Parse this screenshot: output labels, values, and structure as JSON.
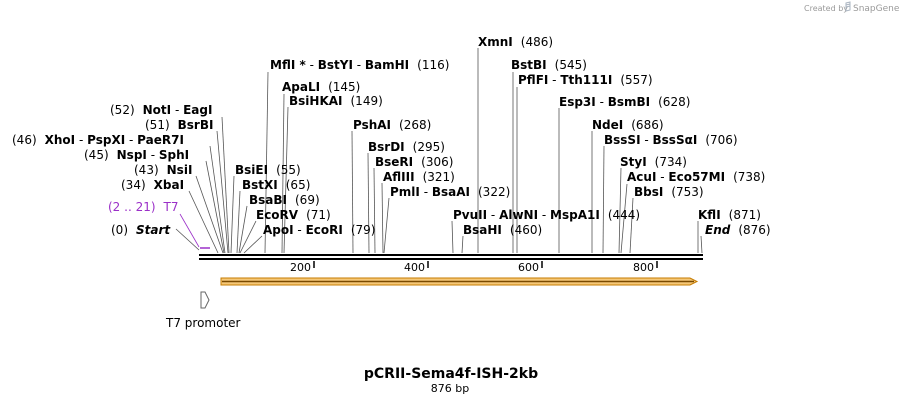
{
  "credit": "Created by",
  "brand": "SnapGene",
  "plasmid": {
    "name": "pCRII-Sema4f-ISH-2kb",
    "size_label": "876 bp",
    "length": 876
  },
  "ticks": [
    "200",
    "400",
    "600",
    "800"
  ],
  "labels": [
    {
      "id": "xmni",
      "parts": [
        {
          "t": "XmnI",
          "b": true
        }
      ],
      "pos": "(486)",
      "site": 486
    },
    {
      "id": "mfli",
      "parts": [
        {
          "t": "MflI *",
          "b": true
        },
        {
          "t": " - "
        },
        {
          "t": "BstYI",
          "b": true
        },
        {
          "t": " - "
        },
        {
          "t": "BamHI",
          "b": true
        }
      ],
      "pos": "(116)",
      "site": 116
    },
    {
      "id": "bstbi",
      "parts": [
        {
          "t": "BstBI",
          "b": true
        }
      ],
      "pos": "(545)",
      "site": 545
    },
    {
      "id": "pflfi",
      "parts": [
        {
          "t": "PflFI",
          "b": true
        },
        {
          "t": " - "
        },
        {
          "t": "Tth111I",
          "b": true
        }
      ],
      "pos": "(557)",
      "site": 557
    },
    {
      "id": "apali",
      "parts": [
        {
          "t": "ApaLI",
          "b": true
        }
      ],
      "pos": "(145)",
      "site": 145
    },
    {
      "id": "bsihkai",
      "parts": [
        {
          "t": "BsiHKAI",
          "b": true
        }
      ],
      "pos": "(149)",
      "site": 149
    },
    {
      "id": "esp3i",
      "parts": [
        {
          "t": "Esp3I",
          "b": true
        },
        {
          "t": " - "
        },
        {
          "t": "BsmBI",
          "b": true
        }
      ],
      "pos": "(628)",
      "site": 628
    },
    {
      "id": "noti",
      "pre": "(52)",
      "parts": [
        {
          "t": "NotI",
          "b": true
        },
        {
          "t": " - "
        },
        {
          "t": "EagI",
          "b": true
        }
      ],
      "site": 52
    },
    {
      "id": "bsrbi",
      "pre": "(51)",
      "parts": [
        {
          "t": "BsrBI",
          "b": true
        }
      ],
      "site": 51
    },
    {
      "id": "pshai",
      "parts": [
        {
          "t": "PshAI",
          "b": true
        }
      ],
      "pos": "(268)",
      "site": 268
    },
    {
      "id": "ndei",
      "parts": [
        {
          "t": "NdeI",
          "b": true
        }
      ],
      "pos": "(686)",
      "site": 686
    },
    {
      "id": "xhoi",
      "pre": "(46)",
      "parts": [
        {
          "t": "XhoI",
          "b": true
        },
        {
          "t": " - "
        },
        {
          "t": "PspXI",
          "b": true
        },
        {
          "t": " - "
        },
        {
          "t": "PaeR7I",
          "b": true
        }
      ],
      "site": 46
    },
    {
      "id": "bsssi",
      "parts": [
        {
          "t": "BssSI",
          "b": true
        },
        {
          "t": " - "
        },
        {
          "t": "BssSαI",
          "b": true
        }
      ],
      "pos": "(706)",
      "site": 706
    },
    {
      "id": "bsrdi",
      "parts": [
        {
          "t": "BsrDI",
          "b": true
        }
      ],
      "pos": "(295)",
      "site": 295
    },
    {
      "id": "nspi",
      "pre": "(45)",
      "parts": [
        {
          "t": "NspI",
          "b": true
        },
        {
          "t": " - "
        },
        {
          "t": "SphI",
          "b": true
        }
      ],
      "site": 45
    },
    {
      "id": "bseri",
      "parts": [
        {
          "t": "BseRI",
          "b": true
        }
      ],
      "pos": "(306)",
      "site": 306
    },
    {
      "id": "styi",
      "parts": [
        {
          "t": "StyI",
          "b": true
        }
      ],
      "pos": "(734)",
      "site": 734
    },
    {
      "id": "nsii",
      "pre": "(43)",
      "parts": [
        {
          "t": "NsiI",
          "b": true
        }
      ],
      "site": 43
    },
    {
      "id": "bsiei",
      "parts": [
        {
          "t": "BsiEI",
          "b": true
        }
      ],
      "pos": "(55)",
      "site": 55
    },
    {
      "id": "afliii",
      "parts": [
        {
          "t": "AflIII",
          "b": true
        }
      ],
      "pos": "(321)",
      "site": 321
    },
    {
      "id": "acui",
      "parts": [
        {
          "t": "AcuI",
          "b": true
        },
        {
          "t": " - "
        },
        {
          "t": "Eco57MI",
          "b": true
        }
      ],
      "pos": "(738)",
      "site": 738
    },
    {
      "id": "xbai",
      "pre": "(34)",
      "parts": [
        {
          "t": "XbaI",
          "b": true
        }
      ],
      "site": 34
    },
    {
      "id": "bstxi",
      "parts": [
        {
          "t": "BstXI",
          "b": true
        }
      ],
      "pos": "(65)",
      "site": 65
    },
    {
      "id": "pmli",
      "parts": [
        {
          "t": "PmlI",
          "b": true
        },
        {
          "t": " - "
        },
        {
          "t": "BsaAI",
          "b": true
        }
      ],
      "pos": "(322)",
      "site": 322
    },
    {
      "id": "bbsi",
      "parts": [
        {
          "t": "BbsI",
          "b": true
        }
      ],
      "pos": "(753)",
      "site": 753
    },
    {
      "id": "bsabi",
      "parts": [
        {
          "t": "BsaBI",
          "b": true
        }
      ],
      "pos": "(69)",
      "site": 69
    },
    {
      "id": "t7",
      "pre": "(2 .. 21)",
      "parts": [
        {
          "t": "T7"
        }
      ],
      "purple": true,
      "site": 2
    },
    {
      "id": "ecorv",
      "parts": [
        {
          "t": "EcoRV",
          "b": true
        }
      ],
      "pos": "(71)",
      "site": 71
    },
    {
      "id": "pvuii",
      "parts": [
        {
          "t": "PvuII",
          "b": true
        },
        {
          "t": " - "
        },
        {
          "t": "AlwNI",
          "b": true
        },
        {
          "t": " - "
        },
        {
          "t": "MspA1I",
          "b": true
        }
      ],
      "pos": "(444)",
      "site": 444
    },
    {
      "id": "kfli",
      "parts": [
        {
          "t": "KflI",
          "b": true
        }
      ],
      "pos": "(871)",
      "site": 871
    },
    {
      "id": "start",
      "pre": "(0)",
      "parts": [
        {
          "t": "Start",
          "b": true,
          "i": true
        }
      ],
      "site": 0
    },
    {
      "id": "apoi",
      "parts": [
        {
          "t": "ApoI",
          "b": true
        },
        {
          "t": " - "
        },
        {
          "t": "EcoRI",
          "b": true
        }
      ],
      "pos": "(79)",
      "site": 79
    },
    {
      "id": "bsahi",
      "parts": [
        {
          "t": "BsaHI",
          "b": true
        }
      ],
      "pos": "(460)",
      "site": 460
    },
    {
      "id": "end",
      "parts": [
        {
          "t": "End",
          "b": true,
          "i": true
        }
      ],
      "pos": "(876)",
      "site": 876
    }
  ],
  "feature": {
    "name": "T7 promoter"
  },
  "colors": {
    "arrow_fill": "#f6c878",
    "arrow_border": "#c57b00",
    "purple": "#9b30c8"
  }
}
